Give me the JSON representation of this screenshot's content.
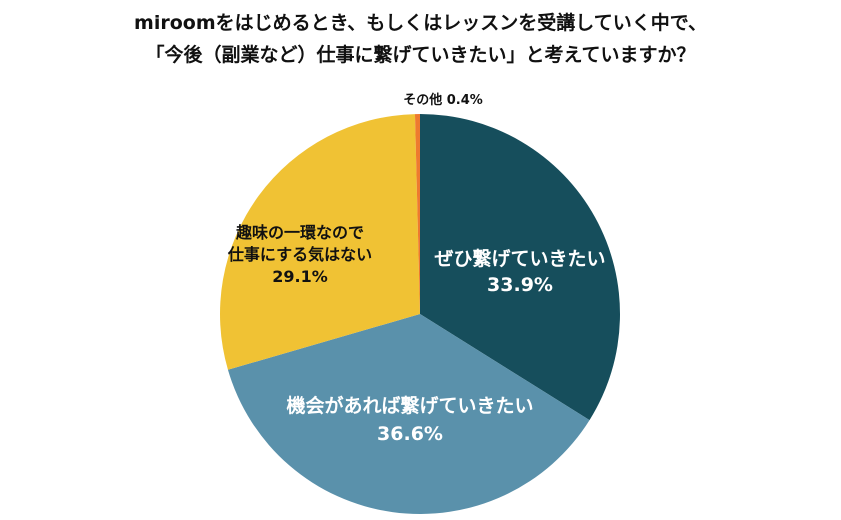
{
  "chart_data": {
    "type": "pie",
    "title_lines": [
      "miroomをはじめるとき、もしくはレッスンを受講していく中で、",
      "「今後（副業など）仕事に繋げていきたい」と考えていますか？"
    ],
    "slices": [
      {
        "label_lines": [
          "ぜひ繋げていきたい"
        ],
        "value_text": "33.9%",
        "value": 33.9,
        "color": "#164E5C",
        "text_color": "#ffffff"
      },
      {
        "label_lines": [
          "機会があれば繋げていきたい"
        ],
        "value_text": "36.6%",
        "value": 36.6,
        "color": "#5A91AB",
        "text_color": "#ffffff"
      },
      {
        "label_lines": [
          "趣味の一環なので",
          "仕事にする気はない"
        ],
        "value_text": "29.1%",
        "value": 29.1,
        "color": "#F0C234",
        "text_color": "#111111"
      },
      {
        "label_lines": [
          "その他"
        ],
        "value_text": "0.4%",
        "value": 0.4,
        "color": "#EE7A2F",
        "text_color": "#111111"
      }
    ],
    "start_angle": "12 o'clock",
    "direction": "clockwise",
    "legend": "none"
  }
}
